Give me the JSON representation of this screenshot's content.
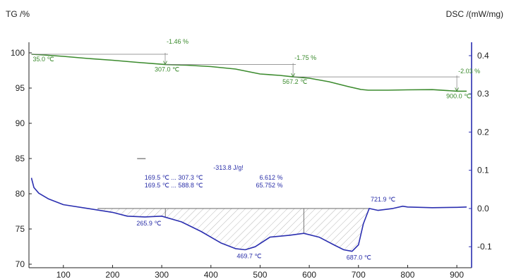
{
  "colors": {
    "tg": "#3c8b2e",
    "dsc": "#2b2fb0",
    "right_axis": "#2b2fb0",
    "frame": "#222222",
    "hatch": "#8a8a8a"
  },
  "chart_data": {
    "type": "line",
    "left_axis_title": "TG /%",
    "right_axis_title": "DSC /(mW/mg)",
    "xlim": [
      30,
      930
    ],
    "x_ticks": [
      "100",
      "200",
      "300",
      "400",
      "500",
      "600",
      "700",
      "800",
      "900"
    ],
    "x_tick_values": [
      100,
      200,
      300,
      400,
      500,
      600,
      700,
      800,
      900
    ],
    "y_left_lim": [
      69.5,
      101.5
    ],
    "y_left_ticks": [
      "70",
      "75",
      "80",
      "85",
      "90",
      "95",
      "100"
    ],
    "y_left_tick_values": [
      70,
      75,
      80,
      85,
      90,
      95,
      100
    ],
    "y_right_lim": [
      -0.155,
      0.435
    ],
    "y_right_ticks": [
      "-0.1",
      "0.0",
      "0.1",
      "0.2",
      "0.3",
      "0.4"
    ],
    "y_right_tick_values": [
      -0.1,
      0.0,
      0.1,
      0.2,
      0.3,
      0.4
    ],
    "grid": false,
    "series": [
      {
        "key": "tg",
        "axis": "left",
        "x": [
          35,
          60,
          100,
          150,
          200,
          250,
          307,
          350,
          400,
          450,
          500,
          540,
          567,
          600,
          640,
          680,
          705,
          720,
          760,
          800,
          850,
          900,
          920
        ],
        "y": [
          99.8,
          99.7,
          99.5,
          99.2,
          98.95,
          98.65,
          98.34,
          98.25,
          98.05,
          97.7,
          97.0,
          96.8,
          96.59,
          96.4,
          95.9,
          95.2,
          94.8,
          94.7,
          94.7,
          94.75,
          94.78,
          94.56,
          94.56
        ]
      },
      {
        "key": "dsc",
        "axis": "right",
        "x": [
          35,
          40,
          50,
          70,
          100,
          150,
          200,
          230,
          265.9,
          300,
          340,
          380,
          420,
          450,
          469.7,
          490,
          520,
          560,
          588.8,
          620,
          650,
          670,
          687,
          700,
          710,
          721.9,
          740,
          770,
          790,
          800,
          850,
          900,
          920
        ],
        "y": [
          0.08,
          0.055,
          0.04,
          0.025,
          0.01,
          0.0,
          -0.01,
          -0.02,
          -0.022,
          -0.02,
          -0.035,
          -0.06,
          -0.09,
          -0.105,
          -0.108,
          -0.1,
          -0.075,
          -0.07,
          -0.065,
          -0.075,
          -0.095,
          -0.108,
          -0.112,
          -0.095,
          -0.04,
          0.0,
          -0.005,
          0.0,
          0.006,
          0.004,
          0.002,
          0.003,
          0.004
        ]
      }
    ],
    "tg_annotations": [
      {
        "text": "-1.46 %",
        "x": 307,
        "y": 101.3
      },
      {
        "text": "-1.75 %",
        "x": 567,
        "y": 99.0
      },
      {
        "text": "-2.03 %",
        "x": 900,
        "y": 97.1
      }
    ],
    "tg_temperature_labels": [
      {
        "text": "35.0 ℃",
        "x": 35,
        "y": 99.8
      },
      {
        "text": "307.0 ℃",
        "x": 307,
        "y": 98.34
      },
      {
        "text": "567.2 ℃",
        "x": 567,
        "y": 96.59
      },
      {
        "text": "900.0 ℃",
        "x": 900,
        "y": 94.56
      }
    ],
    "dsc_peak_labels": [
      {
        "text": "265.9 ℃",
        "x": 265.9,
        "y": -0.022
      },
      {
        "text": "469.7 ℃",
        "x": 469.7,
        "y": -0.108
      },
      {
        "text": "687.0 ℃",
        "x": 687,
        "y": -0.112
      },
      {
        "text": "721.9 ℃",
        "x": 721.9,
        "y": 0.0
      }
    ],
    "dsc_integration": {
      "x_start": 169.5,
      "x_mid": 307.3,
      "x_mid2": 588.8,
      "x_end": 721.9,
      "area_label": "-313.8 J/g!",
      "range_1": "169.5 ℃ ... 307.3 ℃",
      "range_1_value": "6.612 %",
      "range_2": "169.5 ℃ ... 588.8 ℃",
      "range_2_value": "65.752 %"
    },
    "marker_text": "—"
  }
}
